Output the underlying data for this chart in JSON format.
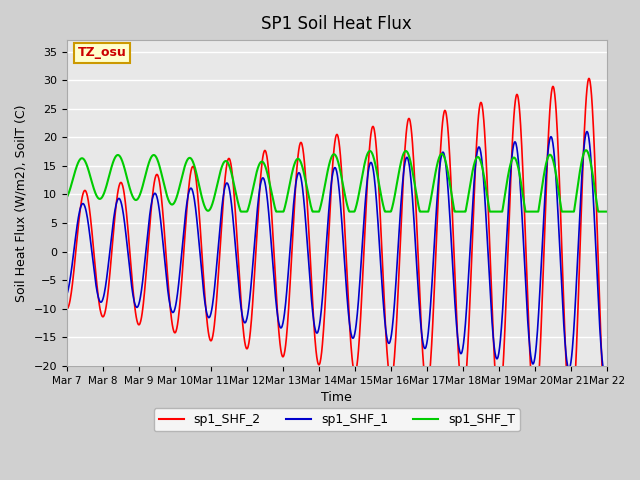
{
  "title": "SP1 Soil Heat Flux",
  "ylabel": "Soil Heat Flux (W/m2), SoilT (C)",
  "xlabel": "Time",
  "ylim": [
    -20,
    37
  ],
  "yticks": [
    -20,
    -15,
    -10,
    -5,
    0,
    5,
    10,
    15,
    20,
    25,
    30,
    35
  ],
  "xtick_labels": [
    "Mar 7",
    "Mar 8",
    "Mar 9",
    "Mar 10",
    "Mar 11",
    "Mar 12",
    "Mar 13",
    "Mar 14",
    "Mar 15",
    "Mar 16",
    "Mar 17",
    "Mar 18",
    "Mar 19",
    "Mar 20",
    "Mar 21",
    "Mar 22"
  ],
  "color_shf2": "#ff0000",
  "color_shf1": "#0000cc",
  "color_shft": "#00cc00",
  "legend_labels": [
    "sp1_SHF_2",
    "sp1_SHF_1",
    "sp1_SHF_T"
  ],
  "annotation_text": "TZ_osu",
  "annotation_color": "#cc0000",
  "annotation_bg": "#ffffcc",
  "annotation_border": "#cc9900",
  "n_days": 15,
  "samples_per_day": 96
}
